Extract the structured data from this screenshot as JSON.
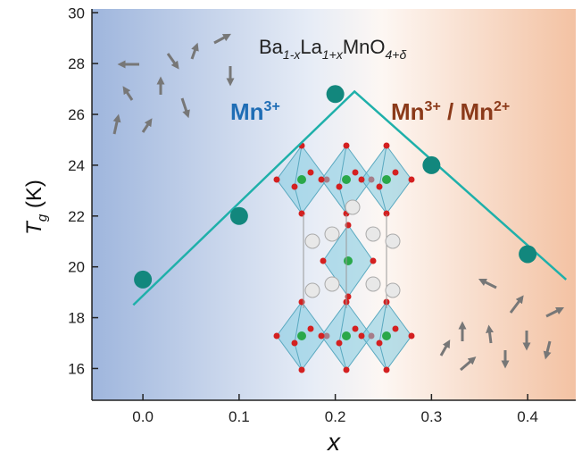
{
  "chart_data": {
    "type": "scatter",
    "formula": [
      "Ba",
      "1-x",
      "La",
      "1+x",
      "MnO",
      "4+δ"
    ],
    "annotation_left": [
      "Mn",
      "3+"
    ],
    "annotation_right": [
      "Mn",
      "3+",
      " / Mn",
      "2+"
    ],
    "x_label": "x",
    "y_label": [
      "T",
      "g",
      " (K)"
    ],
    "x": [
      0.0,
      0.1,
      0.2,
      0.3,
      0.4
    ],
    "series": [
      {
        "color": "#12877d",
        "values": [
          19.5,
          22.0,
          26.8,
          24.0,
          20.5
        ]
      },
      {
        "color": "#1fb0aa",
        "x": [
          -0.01,
          0.22,
          0.44
        ],
        "values": [
          18.5,
          26.9,
          19.5
        ]
      }
    ],
    "xlim": [
      -0.053,
      0.45
    ],
    "ylim": [
      14.75,
      30.15
    ],
    "xticks": [
      {
        "value": 0.0,
        "label": "0.0"
      },
      {
        "value": 0.1,
        "label": "0.1"
      },
      {
        "value": 0.2,
        "label": "0.2"
      },
      {
        "value": 0.3,
        "label": "0.3"
      },
      {
        "value": 0.4,
        "label": "0.4"
      }
    ],
    "yticks": [
      16,
      18,
      20,
      22,
      24,
      26,
      28,
      30
    ]
  }
}
